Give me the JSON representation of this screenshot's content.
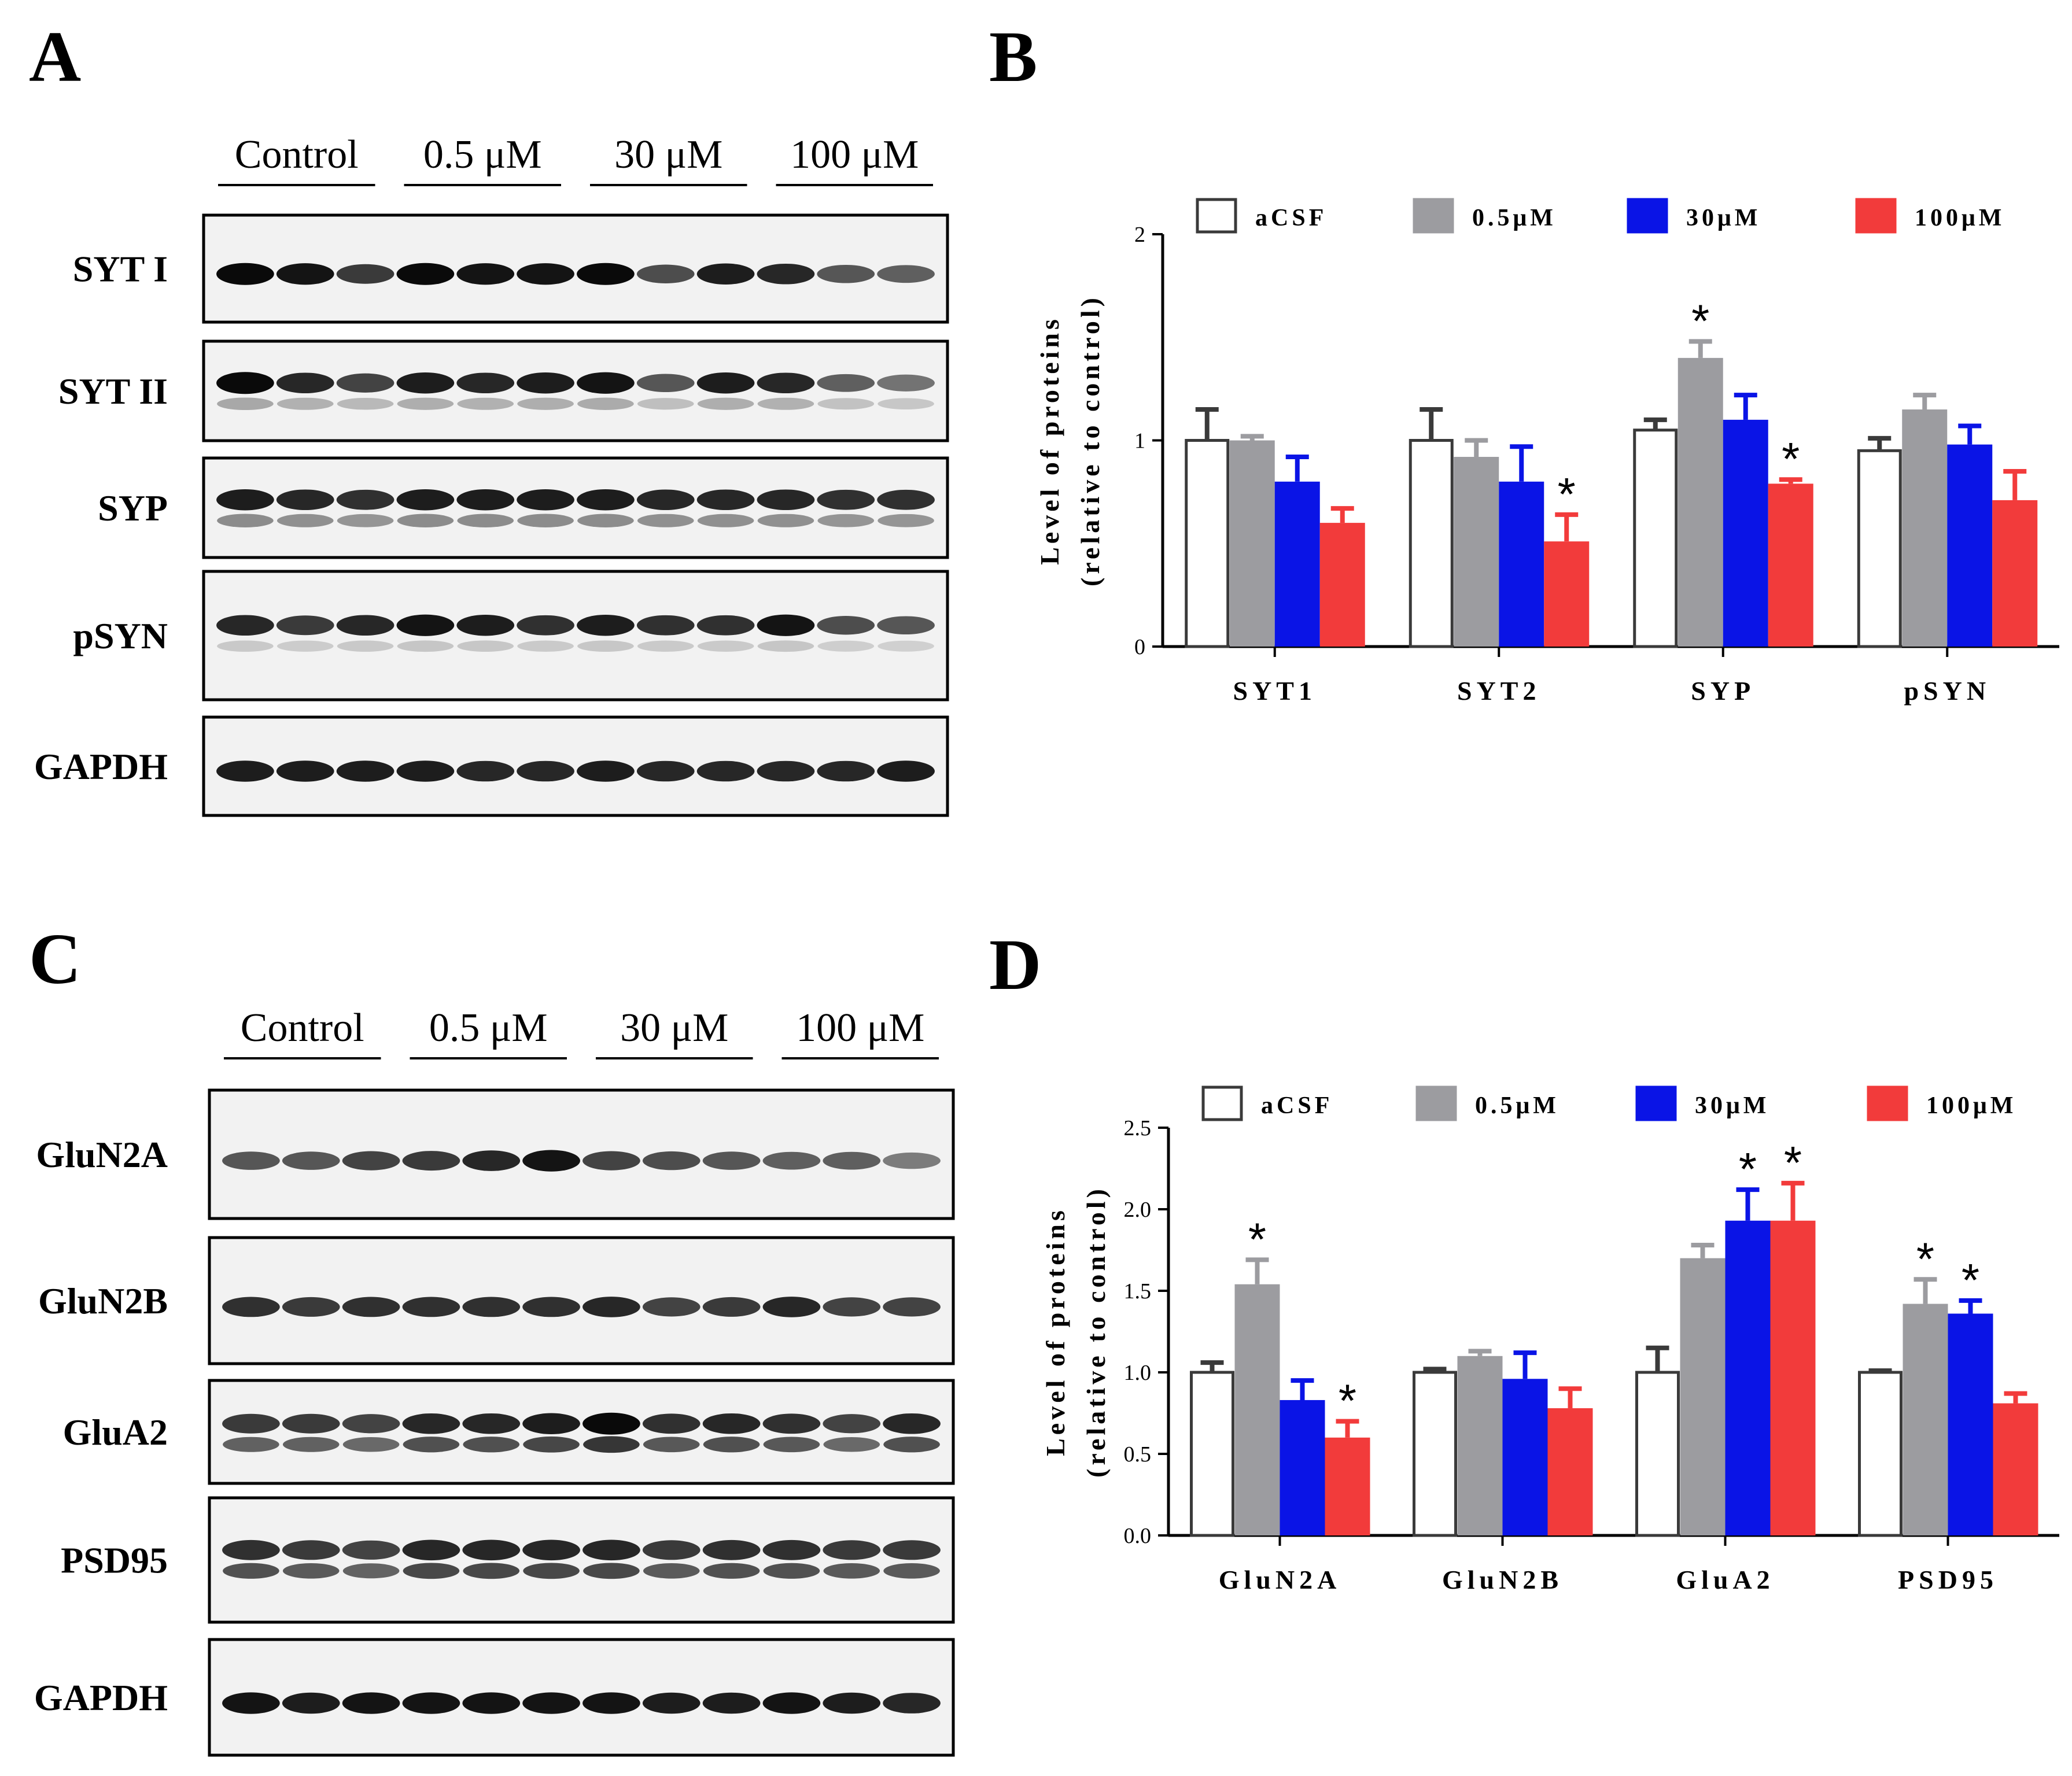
{
  "panels": {
    "A": "A",
    "B": "B",
    "C": "C",
    "D": "D"
  },
  "blot_top": {
    "groups": [
      "Control",
      "0.5 μM",
      "30 μM",
      "100 μM"
    ],
    "rows": [
      {
        "label": "SYT I",
        "intensity": [
          1.0,
          0.95,
          0.75,
          1.0,
          0.95,
          0.95,
          1.0,
          0.65,
          0.9,
          0.85,
          0.6,
          0.55
        ],
        "double": false,
        "lower": 0
      },
      {
        "label": "SYT II",
        "intensity": [
          1.0,
          0.85,
          0.7,
          0.9,
          0.85,
          0.9,
          0.95,
          0.6,
          0.9,
          0.85,
          0.55,
          0.45
        ],
        "double": true,
        "lower": 0.3
      },
      {
        "label": "SYP",
        "intensity": [
          0.9,
          0.85,
          0.8,
          0.9,
          0.9,
          0.9,
          0.9,
          0.85,
          0.85,
          0.85,
          0.8,
          0.8
        ],
        "double": true,
        "lower": 0.5
      },
      {
        "label": "pSYN",
        "intensity": [
          0.85,
          0.75,
          0.85,
          0.95,
          0.9,
          0.8,
          0.9,
          0.8,
          0.8,
          0.95,
          0.65,
          0.6
        ],
        "double": true,
        "lower": 0.15
      },
      {
        "label": "GAPDH",
        "intensity": [
          0.9,
          0.9,
          0.9,
          0.9,
          0.85,
          0.85,
          0.9,
          0.85,
          0.85,
          0.85,
          0.85,
          0.9
        ],
        "double": false,
        "lower": 0
      }
    ]
  },
  "blot_bottom": {
    "groups": [
      "Control",
      "0.5 μM",
      "30 μM",
      "100 μM"
    ],
    "rows": [
      {
        "label": "GluN2A",
        "intensity": [
          0.6,
          0.6,
          0.7,
          0.75,
          0.85,
          0.95,
          0.7,
          0.65,
          0.6,
          0.55,
          0.55,
          0.4
        ],
        "double": false,
        "lower": 0
      },
      {
        "label": "GluN2B",
        "intensity": [
          0.8,
          0.75,
          0.8,
          0.8,
          0.8,
          0.8,
          0.85,
          0.7,
          0.75,
          0.85,
          0.7,
          0.7
        ],
        "double": false,
        "lower": 0
      },
      {
        "label": "GluA2",
        "intensity": [
          0.75,
          0.75,
          0.7,
          0.85,
          0.85,
          0.9,
          1.0,
          0.8,
          0.85,
          0.8,
          0.7,
          0.85
        ],
        "double": true,
        "lower": 0.9
      },
      {
        "label": "PSD95",
        "intensity": [
          0.8,
          0.75,
          0.7,
          0.85,
          0.85,
          0.85,
          0.85,
          0.75,
          0.8,
          0.8,
          0.75,
          0.75
        ],
        "double": true,
        "lower": 0.95
      },
      {
        "label": "GAPDH",
        "intensity": [
          0.95,
          0.9,
          0.95,
          0.95,
          0.95,
          0.95,
          0.95,
          0.9,
          0.9,
          0.95,
          0.9,
          0.85
        ],
        "double": false,
        "lower": 0
      }
    ]
  },
  "colors": {
    "aCSF": "#ffffff",
    "0.5μM": "#9c9ca0",
    "30μM": "#0a14e6",
    "100μM": "#f23b3b",
    "axis": "#000000",
    "errorbar_aCSF": "#3a3a3a"
  },
  "chart_data": [
    {
      "type": "bar",
      "ylabel": "Level of proteins",
      "ylabel2": "(relative to control)",
      "ylim": [
        0,
        2
      ],
      "yticks": [
        "0",
        "1",
        "2"
      ],
      "ytick_values": [
        0,
        1,
        2
      ],
      "categories": [
        "SYT1",
        "SYT2",
        "SYP",
        "pSYN"
      ],
      "legend": [
        "aCSF",
        "0.5μM",
        "30μM",
        "100μM"
      ],
      "series": [
        {
          "name": "aCSF",
          "values": [
            1.0,
            1.0,
            1.05,
            0.95
          ],
          "errors": [
            0.15,
            0.15,
            0.05,
            0.06
          ]
        },
        {
          "name": "0.5μM",
          "values": [
            1.0,
            0.92,
            1.4,
            1.15
          ],
          "errors": [
            0.02,
            0.08,
            0.08,
            0.07
          ]
        },
        {
          "name": "30μM",
          "values": [
            0.8,
            0.8,
            1.1,
            0.98
          ],
          "errors": [
            0.12,
            0.17,
            0.12,
            0.09
          ]
        },
        {
          "name": "100μM",
          "values": [
            0.6,
            0.51,
            0.79,
            0.71
          ],
          "errors": [
            0.07,
            0.13,
            0.02,
            0.14
          ]
        }
      ],
      "stars": [
        [
          false,
          false,
          false,
          false
        ],
        [
          false,
          false,
          true,
          false
        ],
        [
          false,
          false,
          false,
          false
        ],
        [
          false,
          true,
          true,
          false
        ]
      ],
      "star_symbol": "*"
    },
    {
      "type": "bar",
      "ylabel": "Level of proteins",
      "ylabel2": "(relative to control)",
      "ylim": [
        0,
        2.5
      ],
      "yticks": [
        "0.0",
        "0.5",
        "1.0",
        "1.5",
        "2.0",
        "2.5"
      ],
      "ytick_values": [
        0,
        0.5,
        1.0,
        1.5,
        2.0,
        2.5
      ],
      "categories": [
        "GluN2A",
        "GluN2B",
        "GluA2",
        "PSD95"
      ],
      "legend": [
        "aCSF",
        "0.5μM",
        "30μM",
        "100μM"
      ],
      "series": [
        {
          "name": "aCSF",
          "values": [
            1.0,
            1.0,
            1.0,
            1.0
          ],
          "errors": [
            0.06,
            0.02,
            0.15,
            0.01
          ]
        },
        {
          "name": "0.5μM",
          "values": [
            1.54,
            1.1,
            1.7,
            1.42
          ],
          "errors": [
            0.15,
            0.03,
            0.08,
            0.15
          ]
        },
        {
          "name": "30μM",
          "values": [
            0.83,
            0.96,
            1.93,
            1.36
          ],
          "errors": [
            0.12,
            0.16,
            0.19,
            0.08
          ]
        },
        {
          "name": "100μM",
          "values": [
            0.6,
            0.78,
            1.93,
            0.81
          ],
          "errors": [
            0.1,
            0.12,
            0.23,
            0.06
          ]
        }
      ],
      "stars": [
        [
          false,
          false,
          false,
          false
        ],
        [
          true,
          false,
          false,
          true
        ],
        [
          false,
          false,
          true,
          true
        ],
        [
          true,
          false,
          true,
          false
        ]
      ],
      "star_symbol": "*"
    }
  ]
}
